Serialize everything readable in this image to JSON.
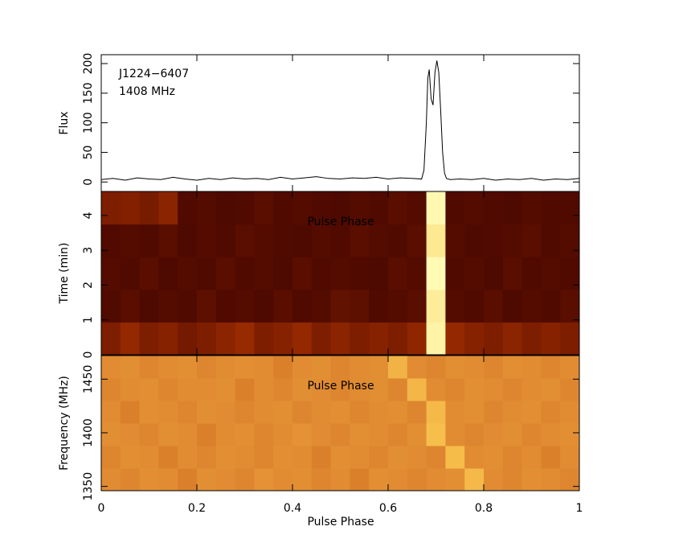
{
  "chart_data": [
    {
      "type": "line",
      "ylabel": "Flux",
      "annotations": [
        "J1224−6407",
        "1408 MHz"
      ],
      "color": "#000000",
      "xlim": [
        0,
        1
      ],
      "ylim": [
        -16,
        215
      ],
      "yticks": [
        0,
        50,
        100,
        150,
        200
      ],
      "x": [
        0,
        0.025,
        0.05,
        0.075,
        0.1,
        0.125,
        0.15,
        0.175,
        0.2,
        0.225,
        0.25,
        0.275,
        0.3,
        0.325,
        0.35,
        0.375,
        0.4,
        0.425,
        0.45,
        0.475,
        0.5,
        0.525,
        0.55,
        0.575,
        0.6,
        0.625,
        0.65,
        0.67,
        0.675,
        0.68,
        0.683,
        0.686,
        0.69,
        0.694,
        0.698,
        0.702,
        0.706,
        0.71,
        0.714,
        0.718,
        0.722,
        0.73,
        0.75,
        0.775,
        0.8,
        0.825,
        0.85,
        0.875,
        0.9,
        0.925,
        0.95,
        0.975,
        1
      ],
      "y": [
        4,
        6,
        3,
        7,
        5,
        4,
        8,
        5,
        3,
        6,
        4,
        7,
        5,
        6,
        4,
        8,
        5,
        7,
        9,
        6,
        5,
        7,
        6,
        8,
        5,
        7,
        6,
        5,
        20,
        100,
        175,
        190,
        140,
        130,
        185,
        205,
        185,
        120,
        50,
        15,
        6,
        4,
        5,
        4,
        6,
        3,
        5,
        4,
        6,
        3,
        5,
        4,
        6
      ]
    },
    {
      "type": "heatmap",
      "ylabel": "Time (min)",
      "annotation": "Pulse Phase",
      "colormap": "heat",
      "xlim": [
        0,
        1
      ],
      "ylim": [
        0,
        4.69
      ],
      "yticks": [
        0,
        1,
        2,
        3,
        4
      ],
      "z": [
        [
          0.3,
          0.35,
          0.3,
          0.32,
          0.28,
          0.3,
          0.33,
          0.36,
          0.3,
          0.32,
          0.35,
          0.3,
          0.33,
          0.3,
          0.32,
          0.3,
          0.34,
          0.95,
          0.35,
          0.32,
          0.3,
          0.33,
          0.3,
          0.32,
          0.3
        ],
        [
          0.2,
          0.22,
          0.19,
          0.21,
          0.2,
          0.23,
          0.2,
          0.21,
          0.19,
          0.22,
          0.2,
          0.21,
          0.24,
          0.23,
          0.2,
          0.21,
          0.22,
          0.92,
          0.21,
          0.2,
          0.22,
          0.19,
          0.21,
          0.2,
          0.22
        ],
        [
          0.21,
          0.2,
          0.22,
          0.19,
          0.21,
          0.2,
          0.22,
          0.2,
          0.21,
          0.19,
          0.22,
          0.2,
          0.21,
          0.2,
          0.19,
          0.22,
          0.21,
          0.98,
          0.2,
          0.21,
          0.19,
          0.22,
          0.2,
          0.21,
          0.2
        ],
        [
          0.2,
          0.21,
          0.2,
          0.22,
          0.19,
          0.21,
          0.2,
          0.22,
          0.21,
          0.2,
          0.19,
          0.21,
          0.2,
          0.22,
          0.21,
          0.2,
          0.22,
          0.9,
          0.21,
          0.19,
          0.2,
          0.21,
          0.22,
          0.2,
          0.21
        ],
        [
          0.3,
          0.31,
          0.29,
          0.33,
          0.2,
          0.21,
          0.19,
          0.2,
          0.22,
          0.2,
          0.21,
          0.2,
          0.19,
          0.21,
          0.2,
          0.22,
          0.21,
          0.97,
          0.2,
          0.21,
          0.2,
          0.19,
          0.21,
          0.2,
          0.2
        ]
      ]
    },
    {
      "type": "heatmap",
      "ylabel": "Frequency (MHz)",
      "xlabel": "Pulse Phase",
      "annotation": "Pulse Phase",
      "colormap": "heat",
      "xlim": [
        0,
        1
      ],
      "ylim": [
        1346,
        1472
      ],
      "yticks": [
        1350,
        1400,
        1450
      ],
      "xticks": [
        0,
        0.2,
        0.4,
        0.6,
        0.8,
        1
      ],
      "z": [
        [
          0.55,
          0.54,
          0.56,
          0.55,
          0.53,
          0.56,
          0.55,
          0.54,
          0.57,
          0.55,
          0.56,
          0.54,
          0.55,
          0.53,
          0.56,
          0.55,
          0.54,
          0.55,
          0.56,
          0.7,
          0.55,
          0.54,
          0.56,
          0.55,
          0.54
        ],
        [
          0.54,
          0.56,
          0.55,
          0.53,
          0.55,
          0.54,
          0.56,
          0.55,
          0.54,
          0.56,
          0.55,
          0.53,
          0.56,
          0.55,
          0.54,
          0.56,
          0.55,
          0.54,
          0.71,
          0.55,
          0.56,
          0.54,
          0.55,
          0.53,
          0.55
        ],
        [
          0.56,
          0.55,
          0.54,
          0.56,
          0.55,
          0.53,
          0.55,
          0.56,
          0.54,
          0.55,
          0.57,
          0.55,
          0.54,
          0.56,
          0.55,
          0.54,
          0.56,
          0.72,
          0.55,
          0.54,
          0.55,
          0.56,
          0.54,
          0.55,
          0.56
        ],
        [
          0.55,
          0.53,
          0.56,
          0.55,
          0.54,
          0.56,
          0.55,
          0.54,
          0.55,
          0.56,
          0.54,
          0.55,
          0.56,
          0.54,
          0.55,
          0.56,
          0.54,
          0.7,
          0.55,
          0.56,
          0.54,
          0.55,
          0.56,
          0.54,
          0.55
        ],
        [
          0.54,
          0.55,
          0.56,
          0.54,
          0.55,
          0.55,
          0.56,
          0.53,
          0.55,
          0.54,
          0.56,
          0.55,
          0.54,
          0.55,
          0.56,
          0.54,
          0.69,
          0.55,
          0.54,
          0.56,
          0.55,
          0.54,
          0.55,
          0.56,
          0.54
        ],
        [
          0.55,
          0.56,
          0.54,
          0.55,
          0.56,
          0.54,
          0.55,
          0.56,
          0.55,
          0.53,
          0.55,
          0.56,
          0.54,
          0.55,
          0.56,
          0.68,
          0.55,
          0.54,
          0.56,
          0.55,
          0.54,
          0.56,
          0.55,
          0.54,
          0.55
        ]
      ]
    }
  ]
}
